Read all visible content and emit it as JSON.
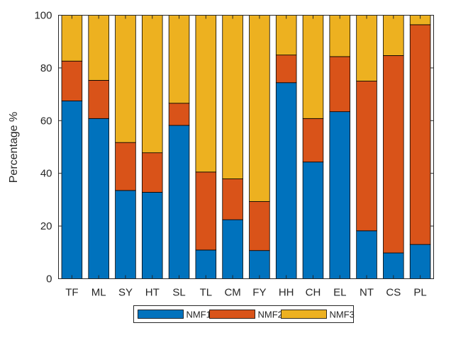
{
  "chart_data": {
    "type": "bar",
    "stacked": true,
    "title": "",
    "xlabel": "",
    "ylabel": "Percentage %",
    "ylim": [
      0,
      100
    ],
    "yticks": [
      0,
      20,
      40,
      60,
      80,
      100
    ],
    "grid": false,
    "legend_position": "bottom",
    "categories": [
      "TF",
      "ML",
      "SY",
      "HT",
      "SL",
      "TL",
      "CM",
      "FY",
      "HH",
      "CH",
      "EL",
      "NT",
      "CS",
      "PL"
    ],
    "series": [
      {
        "name": "NMF1",
        "color": "#0072BD",
        "values": [
          67.5,
          60.8,
          33.5,
          32.8,
          58.2,
          10.9,
          22.4,
          10.7,
          74.4,
          44.3,
          63.4,
          18.2,
          9.8,
          13.0
        ]
      },
      {
        "name": "NMF2",
        "color": "#D95319",
        "values": [
          15.1,
          14.5,
          18.2,
          15.0,
          8.4,
          29.6,
          15.5,
          18.6,
          10.5,
          16.5,
          20.9,
          56.8,
          74.9,
          83.4
        ]
      },
      {
        "name": "NMF3",
        "color": "#EDB120",
        "values": [
          17.4,
          24.7,
          48.3,
          52.2,
          33.4,
          59.5,
          62.1,
          70.7,
          15.1,
          39.2,
          15.7,
          25.0,
          15.3,
          3.6
        ]
      }
    ]
  }
}
